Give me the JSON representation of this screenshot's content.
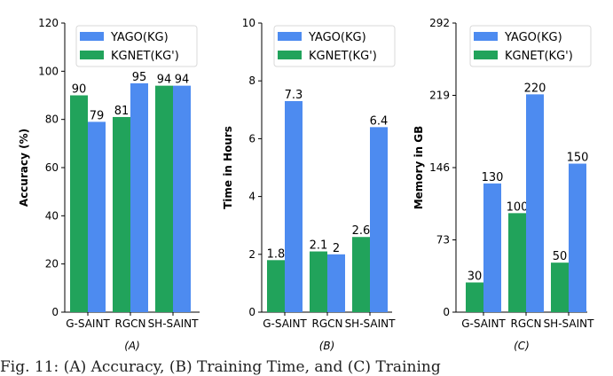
{
  "chart_data": [
    {
      "type": "bar",
      "panel_label": "(A)",
      "ylabel": "Accuracy (%)",
      "categories": [
        "G-SAINT",
        "RGCN",
        "SH-SAINT"
      ],
      "ylim": [
        0,
        120
      ],
      "yticks": [
        0,
        20,
        40,
        60,
        80,
        100,
        120
      ],
      "legend_position": "top-right",
      "series": [
        {
          "name": "KGNET(KG')",
          "color": "#21a35b",
          "values": [
            90,
            81,
            94
          ],
          "labels": [
            "90",
            "81",
            "94"
          ]
        },
        {
          "name": "YAGO(KG)",
          "color": "#4d8bf0",
          "values": [
            79,
            95,
            94
          ],
          "labels": [
            "79",
            "95",
            "94"
          ]
        }
      ]
    },
    {
      "type": "bar",
      "panel_label": "(B)",
      "ylabel": "Time in Hours",
      "categories": [
        "G-SAINT",
        "RGCN",
        "SH-SAINT"
      ],
      "ylim": [
        0,
        10
      ],
      "yticks": [
        0,
        2,
        4,
        6,
        8,
        10
      ],
      "legend_position": "top-right",
      "series": [
        {
          "name": "KGNET(KG')",
          "color": "#21a35b",
          "values": [
            1.8,
            2.1,
            2.6
          ],
          "labels": [
            "1.8",
            "2.1",
            "2.6"
          ]
        },
        {
          "name": "YAGO(KG)",
          "color": "#4d8bf0",
          "values": [
            7.3,
            2.0,
            6.4
          ],
          "labels": [
            "7.3",
            "2",
            "6.4"
          ]
        }
      ]
    },
    {
      "type": "bar",
      "panel_label": "(C)",
      "ylabel": "Memory in GB",
      "categories": [
        "G-SAINT",
        "RGCN",
        "SH-SAINT"
      ],
      "ylim": [
        0,
        292
      ],
      "yticks": [
        0,
        73,
        146,
        219,
        292
      ],
      "legend_position": "top-right",
      "series": [
        {
          "name": "KGNET(KG')",
          "color": "#21a35b",
          "values": [
            30,
            100,
            50
          ],
          "labels": [
            "30",
            "100",
            "50"
          ]
        },
        {
          "name": "YAGO(KG)",
          "color": "#4d8bf0",
          "values": [
            130,
            220,
            150
          ],
          "labels": [
            "130",
            "220",
            "150"
          ]
        }
      ]
    }
  ],
  "caption": "Fig. 11: (A) Accuracy, (B) Training Time, and (C) Training"
}
